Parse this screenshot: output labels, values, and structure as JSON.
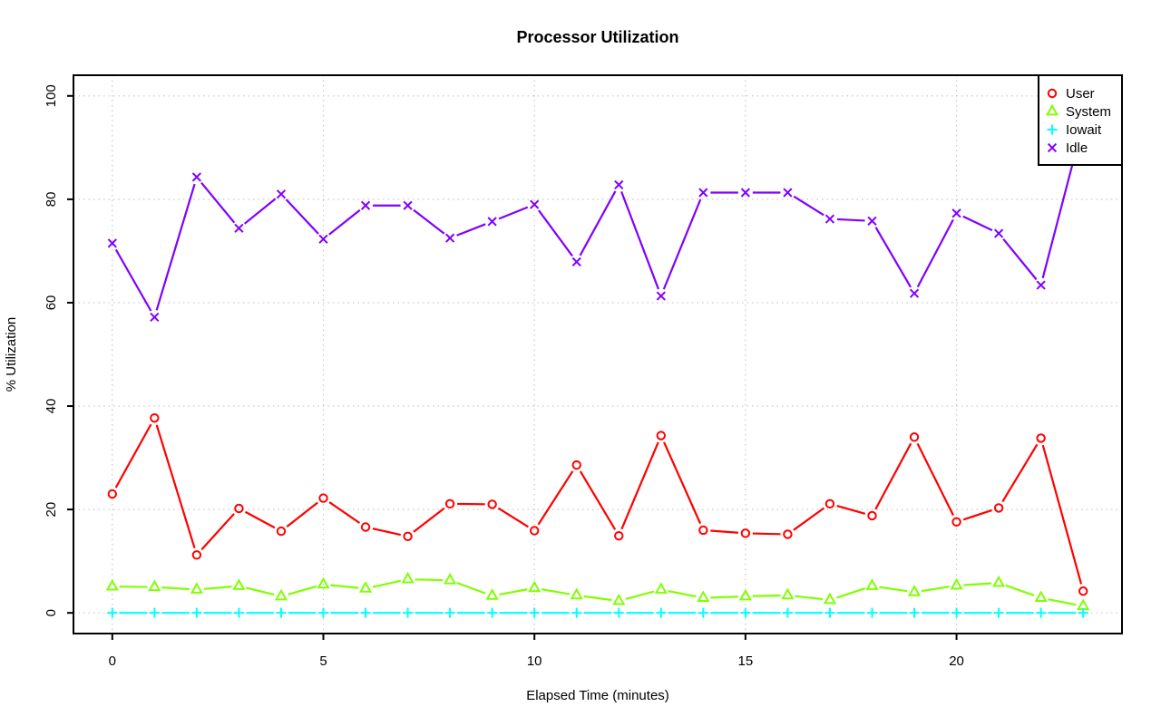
{
  "figure": {
    "title": "Processor Utilization",
    "xlabel": "Elapsed Time (minutes)",
    "ylabel": "% Utilization"
  },
  "chart_data": {
    "type": "line",
    "title": "Processor Utilization",
    "xlabel": "Elapsed Time (minutes)",
    "ylabel": "% Utilization",
    "x": [
      0,
      1,
      2,
      3,
      4,
      5,
      6,
      7,
      8,
      9,
      10,
      11,
      12,
      13,
      14,
      15,
      16,
      17,
      18,
      19,
      20,
      21,
      22,
      23
    ],
    "series": [
      {
        "name": "User",
        "color": "#FF0000",
        "marker": "circle",
        "values": [
          23.0,
          37.7,
          11.2,
          20.2,
          15.8,
          22.2,
          16.6,
          14.8,
          21.1,
          21.0,
          15.9,
          28.6,
          14.9,
          34.3,
          16.0,
          15.4,
          15.2,
          21.1,
          18.8,
          34.0,
          17.6,
          20.3,
          33.8,
          4.2
        ]
      },
      {
        "name": "System",
        "color": "#80FF00",
        "marker": "triangle",
        "values": [
          5.1,
          5.0,
          4.5,
          5.2,
          3.2,
          5.5,
          4.7,
          6.5,
          6.3,
          3.3,
          4.8,
          3.4,
          2.3,
          4.5,
          2.9,
          3.2,
          3.4,
          2.5,
          5.2,
          4.0,
          5.3,
          5.8,
          2.9,
          1.3
        ]
      },
      {
        "name": "Iowait",
        "color": "#00FFFF",
        "marker": "plus",
        "values": [
          0,
          0,
          0,
          0,
          0,
          0,
          0,
          0,
          0,
          0,
          0,
          0,
          0,
          0,
          0,
          0,
          0,
          0,
          0,
          0,
          0,
          0,
          0,
          0
        ]
      },
      {
        "name": "Idle",
        "color": "#8000FF",
        "marker": "x",
        "values": [
          71.5,
          57.2,
          84.3,
          74.4,
          81.0,
          72.3,
          78.8,
          78.8,
          72.5,
          75.7,
          79.0,
          67.9,
          82.8,
          61.3,
          81.3,
          81.3,
          81.3,
          76.2,
          75.8,
          61.8,
          77.3,
          73.4,
          63.4,
          94.7
        ]
      }
    ],
    "xlim": [
      0,
      23
    ],
    "ylim": [
      0,
      100
    ],
    "axis_expansion": 0.04,
    "xticks": [
      0,
      5,
      10,
      15,
      20
    ],
    "yticks": [
      0,
      20,
      40,
      60,
      80,
      100
    ],
    "grid": "dotted",
    "grid_color": "#c9c9c9",
    "line_style": "points-and-lines-with-gaps",
    "legend": {
      "position": "top-right",
      "entries": [
        "User",
        "System",
        "Iowait",
        "Idle"
      ]
    }
  }
}
